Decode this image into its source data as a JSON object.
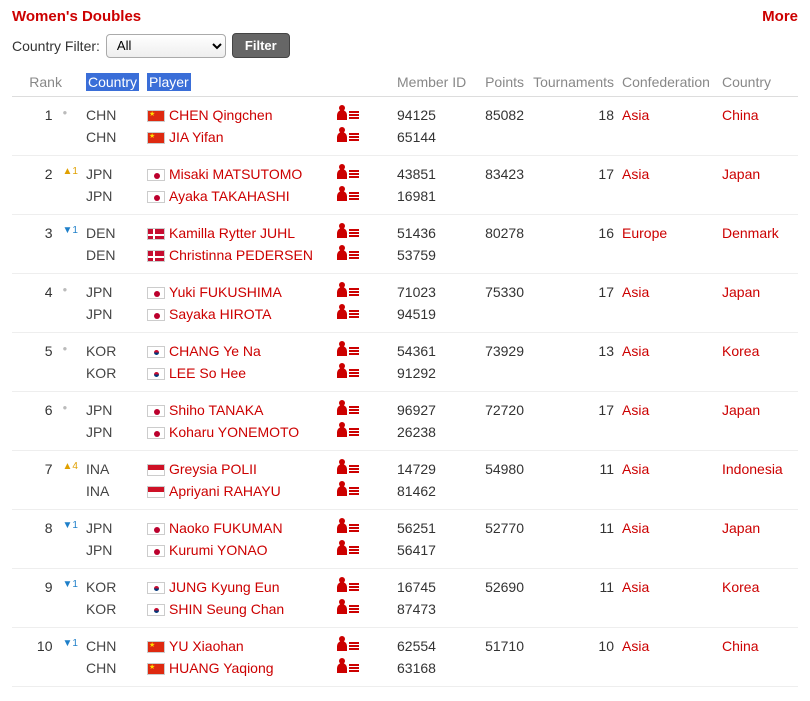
{
  "title": "Women's Doubles",
  "more": "More",
  "filter": {
    "label": "Country Filter:",
    "selected": "All",
    "button": "Filter"
  },
  "headers": {
    "rank": "Rank",
    "country": "Country",
    "player": "Player",
    "memberId": "Member ID",
    "points": "Points",
    "tournaments": "Tournaments",
    "confederation": "Confederation",
    "country2": "Country"
  },
  "rows": [
    {
      "rank": "1",
      "change": "same",
      "cc": "CHN",
      "flag": "CHN",
      "players": [
        {
          "name": "CHEN Qingchen",
          "mid": "94125"
        },
        {
          "name": "JIA Yifan",
          "mid": "65144"
        }
      ],
      "points": "85082",
      "trn": "18",
      "confed": "Asia",
      "country": "China"
    },
    {
      "rank": "2",
      "change": "up",
      "changeN": "1",
      "cc": "JPN",
      "flag": "JPN",
      "players": [
        {
          "name": "Misaki MATSUTOMO",
          "mid": "43851"
        },
        {
          "name": "Ayaka TAKAHASHI",
          "mid": "16981"
        }
      ],
      "points": "83423",
      "trn": "17",
      "confed": "Asia",
      "country": "Japan"
    },
    {
      "rank": "3",
      "change": "down",
      "changeN": "1",
      "cc": "DEN",
      "flag": "DEN",
      "players": [
        {
          "name": "Kamilla Rytter JUHL",
          "mid": "51436"
        },
        {
          "name": "Christinna PEDERSEN",
          "mid": "53759"
        }
      ],
      "points": "80278",
      "trn": "16",
      "confed": "Europe",
      "country": "Denmark"
    },
    {
      "rank": "4",
      "change": "same",
      "cc": "JPN",
      "flag": "JPN",
      "players": [
        {
          "name": "Yuki FUKUSHIMA",
          "mid": "71023"
        },
        {
          "name": "Sayaka HIROTA",
          "mid": "94519"
        }
      ],
      "points": "75330",
      "trn": "17",
      "confed": "Asia",
      "country": "Japan"
    },
    {
      "rank": "5",
      "change": "same",
      "cc": "KOR",
      "flag": "KOR",
      "players": [
        {
          "name": "CHANG Ye Na",
          "mid": "54361"
        },
        {
          "name": "LEE So Hee",
          "mid": "91292"
        }
      ],
      "points": "73929",
      "trn": "13",
      "confed": "Asia",
      "country": "Korea"
    },
    {
      "rank": "6",
      "change": "same",
      "cc": "JPN",
      "flag": "JPN",
      "players": [
        {
          "name": "Shiho TANAKA",
          "mid": "96927"
        },
        {
          "name": "Koharu YONEMOTO",
          "mid": "26238"
        }
      ],
      "points": "72720",
      "trn": "17",
      "confed": "Asia",
      "country": "Japan"
    },
    {
      "rank": "7",
      "change": "up",
      "changeN": "4",
      "cc": "INA",
      "flag": "INA",
      "players": [
        {
          "name": "Greysia POLII",
          "mid": "14729"
        },
        {
          "name": "Apriyani RAHAYU",
          "mid": "81462"
        }
      ],
      "points": "54980",
      "trn": "11",
      "confed": "Asia",
      "country": "Indonesia"
    },
    {
      "rank": "8",
      "change": "down",
      "changeN": "1",
      "cc": "JPN",
      "flag": "JPN",
      "players": [
        {
          "name": "Naoko FUKUMAN",
          "mid": "56251"
        },
        {
          "name": "Kurumi YONAO",
          "mid": "56417"
        }
      ],
      "points": "52770",
      "trn": "11",
      "confed": "Asia",
      "country": "Japan"
    },
    {
      "rank": "9",
      "change": "down",
      "changeN": "1",
      "cc": "KOR",
      "flag": "KOR",
      "players": [
        {
          "name": "JUNG Kyung Eun",
          "mid": "16745"
        },
        {
          "name": "SHIN Seung Chan",
          "mid": "87473"
        }
      ],
      "points": "52690",
      "trn": "11",
      "confed": "Asia",
      "country": "Korea"
    },
    {
      "rank": "10",
      "change": "down",
      "changeN": "1",
      "cc": "CHN",
      "flag": "CHN",
      "players": [
        {
          "name": "YU Xiaohan",
          "mid": "62554"
        },
        {
          "name": "HUANG Yaqiong",
          "mid": "63168"
        }
      ],
      "points": "51710",
      "trn": "10",
      "confed": "Asia",
      "country": "China"
    }
  ]
}
